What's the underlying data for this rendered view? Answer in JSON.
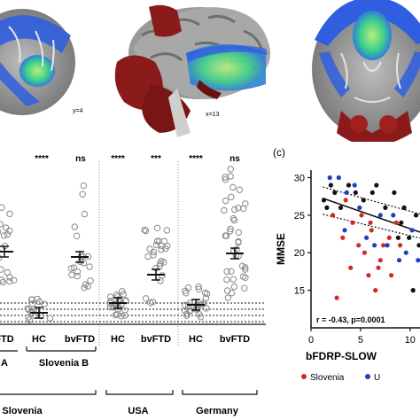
{
  "panel_c_label": "(c)",
  "brains": {
    "slice_y_label": "y=4",
    "slice_x_label": "x=13"
  },
  "stripchart": {
    "significance": [
      {
        "text": "****",
        "x": 47
      },
      {
        "text": "ns",
        "x": 91
      },
      {
        "text": "****",
        "x": 133
      },
      {
        "text": "***",
        "x": 176
      },
      {
        "text": "****",
        "x": 221
      },
      {
        "text": "ns",
        "x": 265
      }
    ],
    "groups": [
      {
        "label": "FTD",
        "x": 5
      },
      {
        "label": "HC",
        "x": 44
      },
      {
        "label": "bvFTD",
        "x": 90
      },
      {
        "label": "HC",
        "x": 133
      },
      {
        "label": "bvFTD",
        "x": 176
      },
      {
        "label": "HC",
        "x": 221
      },
      {
        "label": "bvFTD",
        "x": 265
      }
    ],
    "cohorts": [
      {
        "label": "A",
        "x": 5
      },
      {
        "label": "Slovenia B",
        "x": 72
      }
    ],
    "countries": [
      {
        "label": "Slovenia",
        "x": 25
      },
      {
        "label": "USA",
        "x": 156
      },
      {
        "label": "Germany",
        "x": 245
      }
    ]
  },
  "chart_data": {
    "type": "scatter",
    "xlabel": "bFDRP-SLOW",
    "ylabel": "MMSE",
    "xlim": [
      0,
      11
    ],
    "ylim": [
      10,
      31
    ],
    "xticks": [
      0,
      5,
      10
    ],
    "xtick_labels": [
      "0",
      "5",
      "10"
    ],
    "yticks": [
      15,
      20,
      25,
      30
    ],
    "yticks_labels": [
      "15",
      "20",
      "25",
      "30"
    ],
    "annotation": "r = -0.43, p=0.0001",
    "legend": [
      {
        "name": "Slovenia",
        "color": "#d62728"
      },
      {
        "name": "U",
        "color": "#1f3fbf"
      }
    ],
    "fit": {
      "slope": -0.46,
      "intercept": 27.8
    },
    "series": [
      {
        "name": "Slovenia",
        "color": "#d62728",
        "points": [
          [
            2.2,
            25
          ],
          [
            3.5,
            27
          ],
          [
            4.2,
            24
          ],
          [
            5.4,
            20
          ],
          [
            6.1,
            23
          ],
          [
            6.8,
            18
          ],
          [
            7.3,
            21
          ],
          [
            4.0,
            18
          ],
          [
            5.8,
            17
          ],
          [
            6.5,
            15
          ],
          [
            8.1,
            17
          ],
          [
            2.6,
            14
          ],
          [
            7.9,
            22
          ],
          [
            5.1,
            25
          ],
          [
            9.0,
            21
          ],
          [
            3.2,
            22
          ],
          [
            6.0,
            24
          ],
          [
            7.0,
            19
          ],
          [
            8.6,
            24
          ],
          [
            4.8,
            21
          ]
        ]
      },
      {
        "name": "black",
        "color": "#111111",
        "points": [
          [
            1.3,
            27
          ],
          [
            2.0,
            29
          ],
          [
            3.8,
            29
          ],
          [
            5.3,
            27
          ],
          [
            6.6,
            29
          ],
          [
            8.4,
            28
          ],
          [
            9.4,
            26
          ],
          [
            9.9,
            22
          ],
          [
            10.6,
            25
          ],
          [
            10.9,
            21
          ],
          [
            1.6,
            26
          ],
          [
            4.5,
            28
          ],
          [
            7.5,
            26
          ],
          [
            9.1,
            24
          ],
          [
            10.3,
            15
          ],
          [
            3.0,
            26
          ],
          [
            6.2,
            28
          ],
          [
            8.8,
            22
          ],
          [
            2.4,
            28
          ]
        ]
      },
      {
        "name": "U",
        "color": "#1f3fbf",
        "points": [
          [
            1.9,
            30
          ],
          [
            2.8,
            30
          ],
          [
            3.6,
            28
          ],
          [
            4.9,
            26
          ],
          [
            5.6,
            22
          ],
          [
            7.0,
            25
          ],
          [
            7.7,
            21
          ],
          [
            8.3,
            25
          ],
          [
            9.6,
            20
          ],
          [
            10.2,
            23
          ],
          [
            10.8,
            19
          ],
          [
            3.4,
            23
          ],
          [
            6.4,
            21
          ],
          [
            8.9,
            19
          ],
          [
            4.4,
            29
          ]
        ]
      }
    ]
  }
}
